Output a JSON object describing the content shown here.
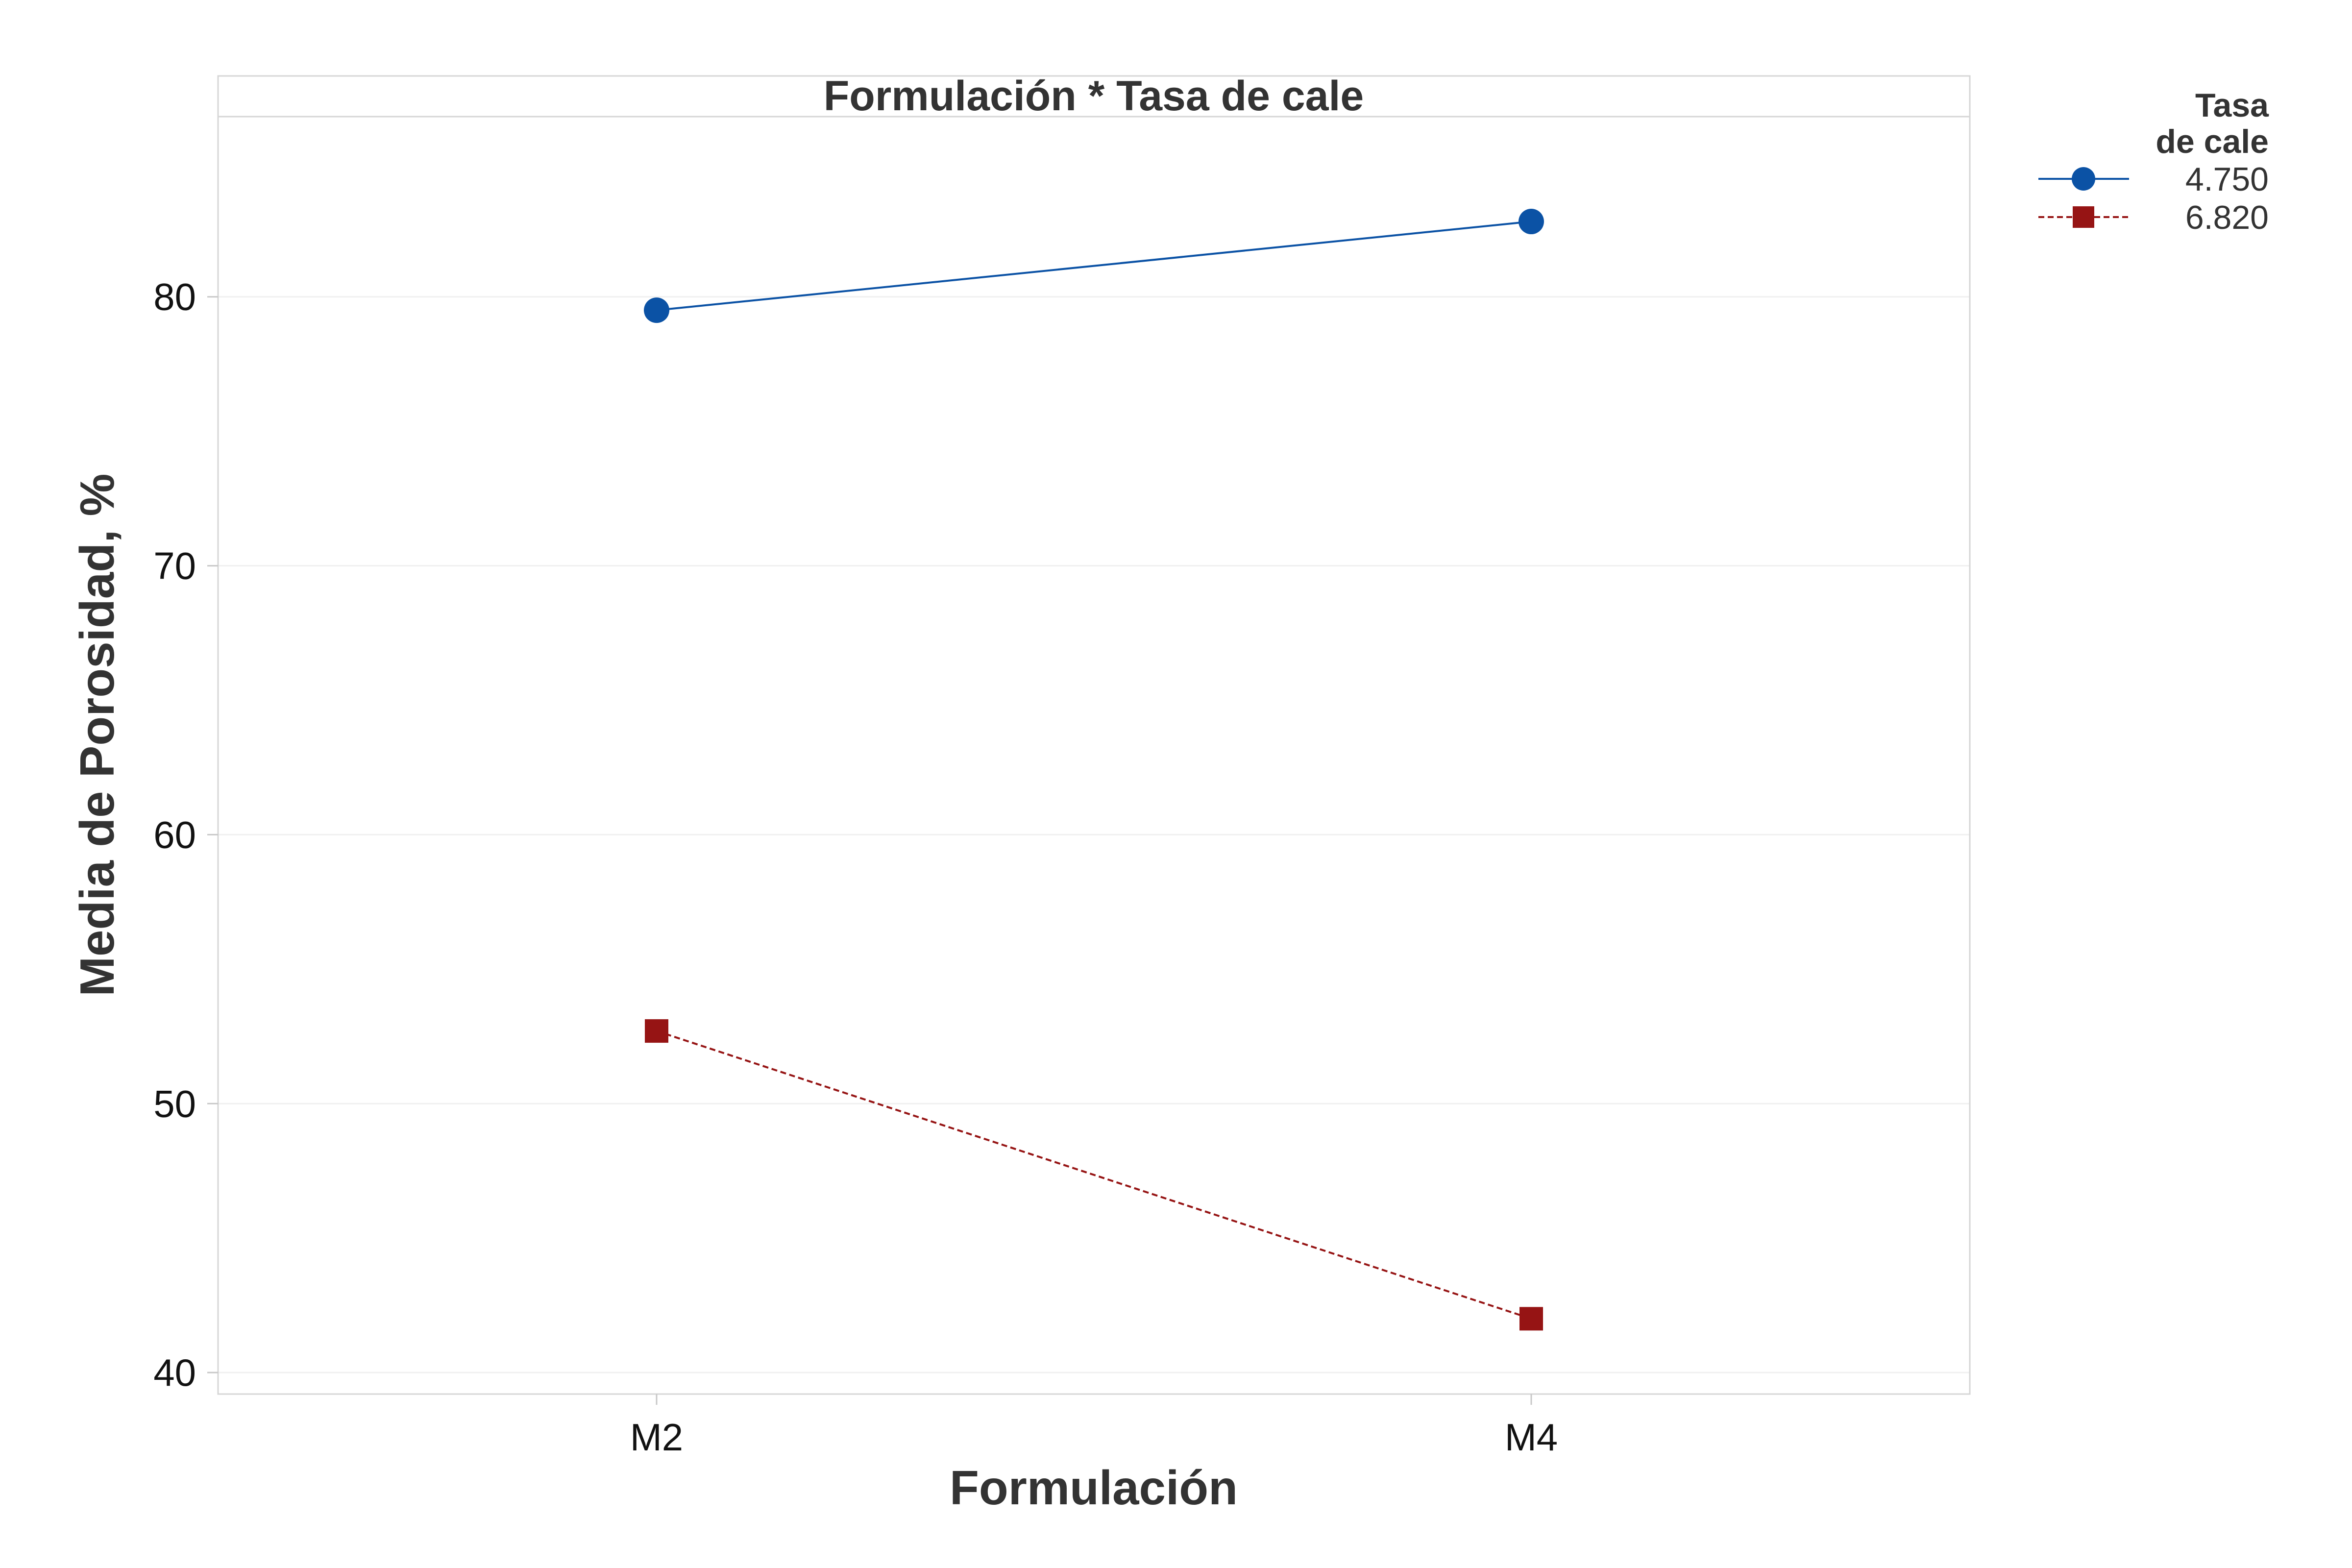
{
  "chart_data": {
    "type": "line",
    "title": "Formulación * Tasa de cale",
    "xlabel": "Formulación",
    "ylabel": "Media de Porosidad, %",
    "categories": [
      "M2",
      "M4"
    ],
    "ylim": [
      39.2,
      86.7
    ],
    "yticks": [
      40,
      50,
      60,
      70,
      80
    ],
    "grid": true,
    "legend": {
      "title_lines": [
        "Tasa",
        "de cale"
      ],
      "placement": "top-right, outside plot"
    },
    "series": [
      {
        "name": "4.750",
        "values": [
          79.5,
          82.8
        ],
        "color": "#0b52a5",
        "marker": "circle",
        "line_style": "solid"
      },
      {
        "name": "6.820",
        "values": [
          52.7,
          42.0
        ],
        "color": "#961414",
        "marker": "square",
        "line_style": "dashed"
      }
    ]
  }
}
